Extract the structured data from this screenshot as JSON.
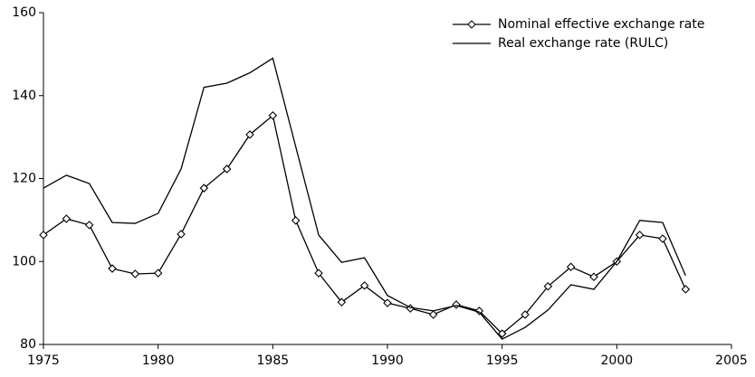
{
  "chart_data": {
    "type": "line",
    "x": [
      1975,
      1976,
      1977,
      1978,
      1979,
      1980,
      1981,
      1982,
      1983,
      1984,
      1985,
      1986,
      1987,
      1988,
      1989,
      1990,
      1991,
      1992,
      1993,
      1994,
      1995,
      1996,
      1997,
      1998,
      1999,
      2000,
      2001,
      2002,
      2003
    ],
    "series": [
      {
        "name": "Nominal effective exchange rate",
        "color": "#000000",
        "marker": "diamond",
        "values": [
          106.4,
          110.3,
          108.8,
          98.3,
          97,
          97.2,
          106.6,
          117.7,
          122.3,
          130.6,
          135.2,
          109.9,
          97.2,
          90.2,
          94.2,
          90,
          88.7,
          87.2,
          89.6,
          88.1,
          82.6,
          87.2,
          94,
          98.7,
          96.3,
          100,
          106.4,
          105.5,
          93.3
        ]
      },
      {
        "name": "Real exchange rate (RULC)",
        "color": "#000000",
        "marker": "none",
        "values": [
          117.7,
          120.8,
          118.8,
          109.4,
          109.2,
          111.6,
          122.3,
          142,
          143,
          145.5,
          149,
          127.7,
          106.4,
          99.8,
          100.9,
          91.8,
          88.9,
          88.1,
          89.4,
          87.8,
          81.3,
          84.1,
          88.3,
          94.4,
          93.3,
          100,
          109.9,
          109.4,
          96.6
        ]
      }
    ],
    "xlim": [
      1975,
      2005
    ],
    "xticks": [
      1975,
      1980,
      1985,
      1990,
      1995,
      2000,
      2005
    ],
    "ylim": [
      80,
      160
    ],
    "yticks": [
      80,
      100,
      120,
      140,
      160
    ],
    "grid": false,
    "legend": "top-right"
  }
}
